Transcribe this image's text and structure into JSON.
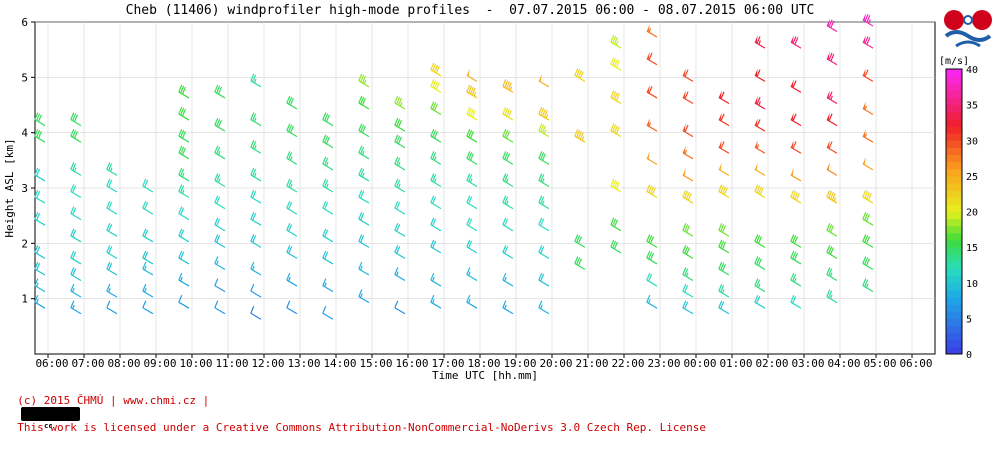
{
  "chart_data": {
    "type": "wind-barb",
    "title": "Cheb (11406) windprofiler high-mode profiles  -  07.07.2015 06:00 - 08.07.2015 06:00 UTC",
    "xlabel": "Time UTC [hh.mm]",
    "ylabel": "Height ASL [km]",
    "x_ticks": [
      "06:00",
      "07:00",
      "08:00",
      "09:00",
      "10:00",
      "11:00",
      "12:00",
      "13:00",
      "14:00",
      "15:00",
      "16:00",
      "17:00",
      "18:00",
      "19:00",
      "20:00",
      "21:00",
      "22:00",
      "23:00",
      "00:00",
      "01:00",
      "02:00",
      "03:00",
      "04:00",
      "05:00",
      "06:00"
    ],
    "xlim": [
      0,
      24.6
    ],
    "ylim": [
      0,
      6
    ],
    "y_ticks": [
      1,
      2,
      3,
      4,
      5,
      6
    ],
    "grid": true,
    "colorbar": {
      "label": "[m/s]",
      "range": [
        0,
        40
      ],
      "ticks": [
        0,
        5,
        10,
        15,
        20,
        25,
        30,
        35,
        40
      ]
    },
    "legend_placement": "right",
    "profiles": [
      {
        "h": [
          0.9,
          1.2,
          1.5,
          1.8,
          2.4,
          2.8,
          3.2,
          3.9,
          4.2
        ],
        "s": [
          8,
          9,
          10,
          10,
          11,
          12,
          11,
          15,
          15
        ]
      },
      {
        "h": [
          0.8,
          1.1,
          1.4,
          1.7,
          2.1,
          2.5,
          2.9,
          3.3,
          3.9,
          4.2
        ],
        "s": [
          8,
          9,
          10,
          11,
          11,
          12,
          12,
          13,
          15,
          15
        ]
      },
      {
        "h": [
          0.8,
          1.1,
          1.5,
          1.8,
          2.2,
          2.6,
          3.0,
          3.3
        ],
        "s": [
          7,
          8,
          10,
          11,
          11,
          12,
          12,
          13
        ]
      },
      {
        "h": [
          0.8,
          1.1,
          1.5,
          1.7,
          2.1,
          2.6,
          3.0
        ],
        "s": [
          7,
          8,
          9,
          10,
          11,
          12,
          12
        ]
      },
      {
        "h": [
          0.9,
          1.3,
          1.7,
          2.1,
          2.5,
          2.9,
          3.2,
          3.6,
          3.9,
          4.3,
          4.7
        ],
        "s": [
          7,
          8,
          10,
          11,
          12,
          13,
          14,
          15,
          15,
          16,
          16
        ]
      },
      {
        "h": [
          0.8,
          1.2,
          1.6,
          2.0,
          2.3,
          2.7,
          3.1,
          3.6,
          4.1,
          4.7
        ],
        "s": [
          7,
          7,
          9,
          10,
          11,
          12,
          13,
          14,
          15,
          15
        ]
      },
      {
        "h": [
          0.7,
          1.1,
          1.5,
          2.0,
          2.4,
          2.8,
          3.2,
          3.7,
          4.2,
          4.9
        ],
        "s": [
          5,
          7,
          9,
          10,
          11,
          12,
          13,
          14,
          14,
          13
        ]
      },
      {
        "h": [
          0.8,
          1.3,
          1.8,
          2.2,
          2.6,
          3.0,
          3.5,
          4.0,
          4.5
        ],
        "s": [
          6,
          8,
          10,
          11,
          12,
          13,
          14,
          15,
          15
        ]
      },
      {
        "h": [
          0.7,
          1.2,
          1.7,
          2.1,
          2.6,
          3.0,
          3.4,
          3.8,
          4.2
        ],
        "s": [
          7,
          8,
          10,
          11,
          12,
          13,
          14,
          15,
          15
        ]
      },
      {
        "h": [
          1.0,
          1.5,
          2.0,
          2.4,
          2.8,
          3.2,
          3.6,
          4.0,
          4.5,
          4.9
        ],
        "s": [
          8,
          9,
          10,
          11,
          12,
          13,
          14,
          15,
          16,
          18
        ]
      },
      {
        "h": [
          0.8,
          1.4,
          1.8,
          2.2,
          2.6,
          3.0,
          3.4,
          3.8,
          4.1,
          4.5
        ],
        "s": [
          6,
          8,
          10,
          11,
          12,
          13,
          14,
          15,
          16,
          18
        ]
      },
      {
        "h": [
          0.9,
          1.3,
          1.9,
          2.3,
          2.7,
          3.1,
          3.5,
          3.9,
          4.4,
          4.8,
          5.1
        ],
        "s": [
          8,
          9,
          10,
          11,
          12,
          13,
          14,
          15,
          17,
          20,
          22
        ]
      },
      {
        "h": [
          0.9,
          1.4,
          1.9,
          2.3,
          2.7,
          3.1,
          3.5,
          3.9,
          4.3,
          4.7,
          5.0
        ],
        "s": [
          8,
          9,
          11,
          12,
          12,
          13,
          15,
          16,
          20,
          23,
          25
        ]
      },
      {
        "h": [
          0.8,
          1.3,
          1.8,
          2.3,
          2.7,
          3.1,
          3.5,
          3.9,
          4.3,
          4.8
        ],
        "s": [
          8,
          9,
          11,
          12,
          13,
          14,
          15,
          17,
          21,
          24
        ]
      },
      {
        "h": [
          0.8,
          1.3,
          1.8,
          2.3,
          2.7,
          3.1,
          3.5,
          4.0,
          4.3,
          4.9
        ],
        "s": [
          9,
          10,
          11,
          12,
          13,
          14,
          15,
          19,
          23,
          25
        ]
      },
      {
        "h": [
          1.6,
          2.0,
          3.9,
          5.0
        ],
        "s": [
          15,
          15,
          23,
          22
        ]
      },
      {
        "h": [
          1.9,
          2.3,
          3.0,
          4.0,
          4.6,
          5.2,
          5.6
        ],
        "s": [
          15,
          16,
          20,
          22,
          22,
          20,
          19
        ]
      },
      {
        "h": [
          0.9,
          1.3,
          1.7,
          2.0,
          2.9,
          3.5,
          4.1,
          4.7,
          5.3,
          5.8
        ],
        "s": [
          9,
          12,
          15,
          16,
          22,
          26,
          29,
          30,
          30,
          28
        ]
      },
      {
        "h": [
          0.8,
          1.1,
          1.4,
          1.8,
          2.2,
          2.8,
          3.2,
          3.6,
          4.0,
          4.6,
          5.0
        ],
        "s": [
          10,
          12,
          14,
          16,
          17,
          22,
          26,
          28,
          30,
          30,
          30
        ]
      },
      {
        "h": [
          0.8,
          1.1,
          1.5,
          1.9,
          2.2,
          2.9,
          3.3,
          3.7,
          4.2,
          4.6
        ],
        "s": [
          10,
          13,
          15,
          16,
          17,
          22,
          25,
          30,
          31,
          32
        ]
      },
      {
        "h": [
          0.9,
          1.2,
          1.6,
          2.0,
          2.9,
          3.3,
          3.7,
          4.1,
          4.5,
          5.0,
          5.6
        ],
        "s": [
          11,
          14,
          15,
          16,
          22,
          25,
          29,
          31,
          33,
          32,
          33
        ]
      },
      {
        "h": [
          0.9,
          1.3,
          1.7,
          2.0,
          2.8,
          3.2,
          3.7,
          4.2,
          4.8,
          5.6
        ],
        "s": [
          12,
          14,
          15,
          16,
          22,
          26,
          30,
          32,
          32,
          35
        ]
      },
      {
        "h": [
          1.0,
          1.4,
          1.8,
          2.2,
          2.8,
          3.3,
          3.7,
          4.2,
          4.6,
          5.3,
          5.9
        ],
        "s": [
          13,
          14,
          16,
          17,
          23,
          27,
          30,
          32,
          34,
          35,
          37
        ]
      },
      {
        "h": [
          1.2,
          1.6,
          2.0,
          2.4,
          2.8,
          3.4,
          3.9,
          4.4,
          5.0,
          5.6,
          6.0
        ],
        "s": [
          14,
          15,
          16,
          17,
          22,
          26,
          28,
          28,
          30,
          36,
          38
        ]
      }
    ]
  },
  "footer": {
    "credit": "(c) 2015 ČHMÚ | www.chmi.cz |",
    "cc_badge_left": "cc",
    "cc_badge_right": "BY-NC-ND",
    "license": "This work is licensed under a Creative Commons Attribution-NonCommercial-NoDerivs 3.0 Czech Rep. License"
  },
  "colors": {
    "plot_border": "#000000",
    "grid": "#cccccc"
  }
}
